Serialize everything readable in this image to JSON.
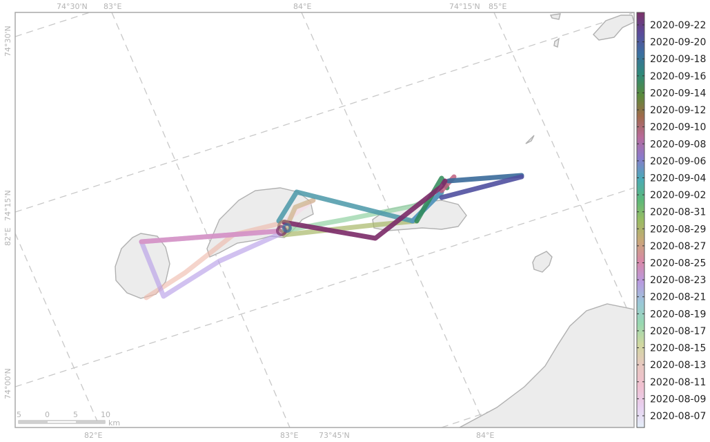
{
  "map": {
    "top_axis_labels": [
      "74°30'N",
      "83°E",
      "84°E",
      "74°15'N",
      "85°E"
    ],
    "bottom_axis_labels": [
      "82°E",
      "83°E",
      "73°45'N",
      "84°E"
    ],
    "left_axis_labels": [
      "74°30'N",
      "74°15'N",
      "82°E",
      "74°00'N"
    ],
    "scale_bar": {
      "ticks": [
        "5",
        "0",
        "5",
        "10"
      ],
      "unit": "km"
    }
  },
  "legend": {
    "dates": [
      "2020-09-22",
      "2020-09-20",
      "2020-09-18",
      "2020-09-16",
      "2020-09-14",
      "2020-09-12",
      "2020-09-10",
      "2020-09-08",
      "2020-09-06",
      "2020-09-04",
      "2020-09-02",
      "2020-08-31",
      "2020-08-29",
      "2020-08-27",
      "2020-08-25",
      "2020-08-23",
      "2020-08-21",
      "2020-08-19",
      "2020-08-17",
      "2020-08-15",
      "2020-08-13",
      "2020-08-11",
      "2020-08-09",
      "2020-08-07"
    ],
    "colors": [
      "#7b3268",
      "#5a4a9a",
      "#3a6fa0",
      "#2f8a78",
      "#5a8a3a",
      "#a06a4a",
      "#b86a9a",
      "#8a7acc",
      "#4aaab8",
      "#5ab87a",
      "#98bc62",
      "#c8a878",
      "#d888a8",
      "#b89ae0",
      "#9ac8d8",
      "#98d8b0",
      "#d0d8a0",
      "#e8c8c0",
      "#f0c0d0",
      "#e8d0f0",
      "#e4eef8"
    ]
  },
  "track": {
    "segments": [
      {
        "color": "#f5dce8",
        "opacity": 0.7
      },
      {
        "color": "#eeb8a8",
        "opacity": 0.6
      },
      {
        "color": "#b8a0e8",
        "opacity": 0.65
      },
      {
        "color": "#d890c0",
        "opacity": 0.8
      },
      {
        "color": "#c8a878",
        "opacity": 0.6
      },
      {
        "color": "#98d4a8",
        "opacity": 0.75
      },
      {
        "color": "#a8b868",
        "opacity": 0.7
      },
      {
        "color": "#4a98a8",
        "opacity": 0.85
      },
      {
        "color": "#5a98c0",
        "opacity": 0.85
      },
      {
        "color": "#2f8a58",
        "opacity": 0.85
      },
      {
        "color": "#c06080",
        "opacity": 0.85
      },
      {
        "color": "#3a6a9a",
        "opacity": 0.9
      },
      {
        "color": "#5050a0",
        "opacity": 0.9
      },
      {
        "color": "#7b2a68",
        "opacity": 0.9
      }
    ]
  }
}
